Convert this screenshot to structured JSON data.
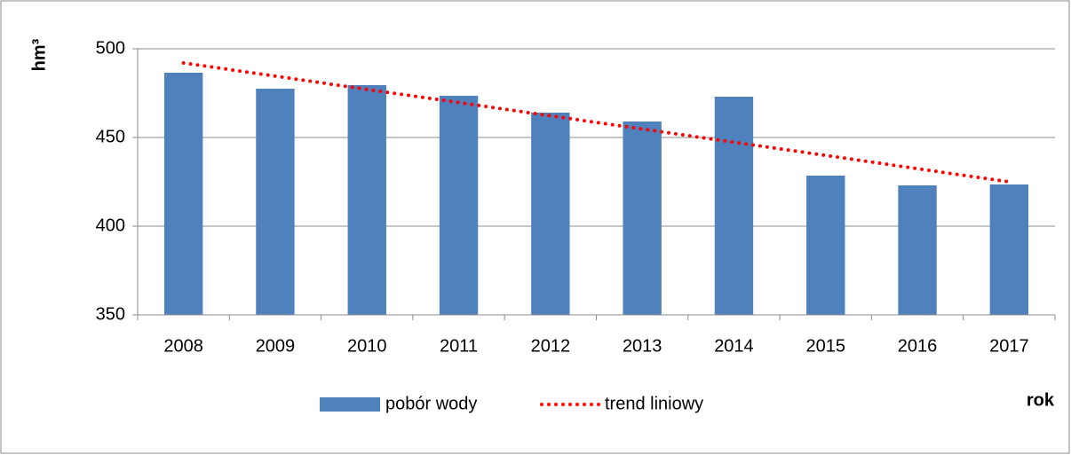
{
  "chart_data": {
    "type": "bar",
    "y_label": "hm³",
    "x_label": "rok",
    "categories": [
      "2008",
      "2009",
      "2010",
      "2011",
      "2012",
      "2013",
      "2014",
      "2015",
      "2016",
      "2017"
    ],
    "series": [
      {
        "name": "pobór wody",
        "type": "bar",
        "color": "#4f81bd",
        "values": [
          486.5,
          477.5,
          479.5,
          473.5,
          464,
          459,
          473,
          428.5,
          423,
          423.5
        ]
      },
      {
        "name": "trend liniowy",
        "type": "line",
        "style": "dotted",
        "color": "#ff0000",
        "values": [
          492,
          484.6,
          477.1,
          469.7,
          462.2,
          454.8,
          447.3,
          439.9,
          432.4,
          425
        ]
      }
    ],
    "ylim": [
      350,
      500
    ],
    "yticks": [
      350,
      400,
      450,
      500
    ],
    "grid": true,
    "legend": "bottom"
  }
}
